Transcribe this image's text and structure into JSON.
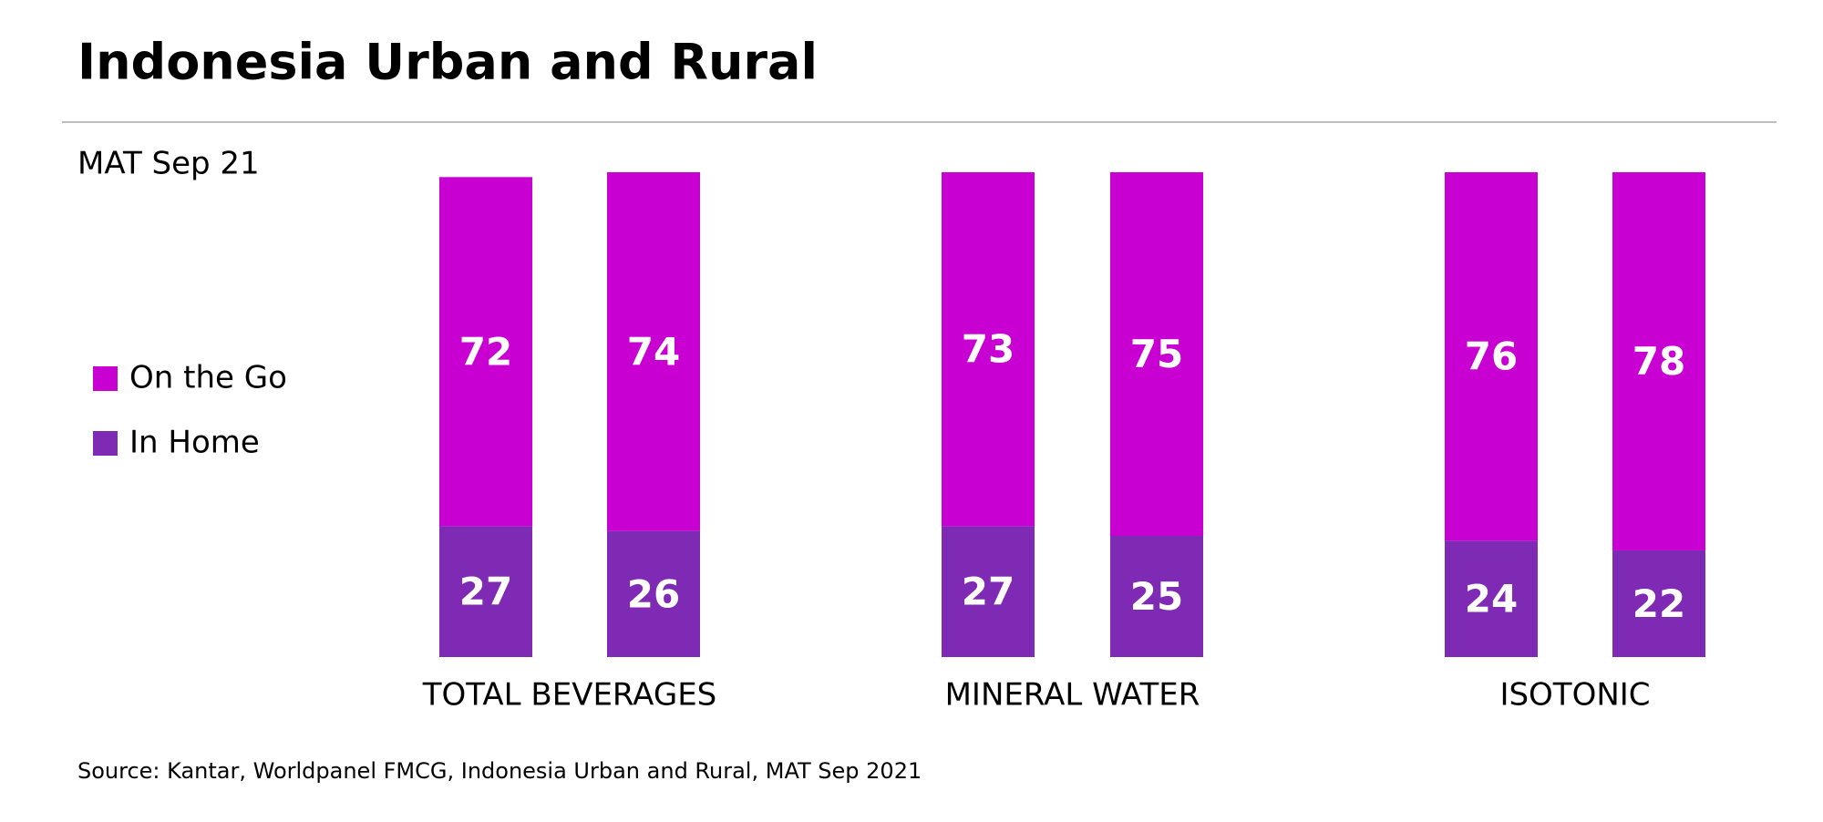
{
  "chart_data": {
    "type": "bar",
    "title": "Indonesia Urban and Rural",
    "subtitle": "MAT Sep 21",
    "source": "Source: Kantar, Worldpanel FMCG, Indonesia Urban and Rural, MAT Sep 2021",
    "categories": [
      "TOTAL BEVERAGES",
      "MINERAL WATER",
      "ISOTONIC"
    ],
    "stacked": true,
    "series": [
      {
        "name": "In Home",
        "color": "#7f2ab5",
        "values": [
          [
            27,
            26
          ],
          [
            27,
            25
          ],
          [
            24,
            22
          ]
        ]
      },
      {
        "name": "On the Go",
        "color": "#c800d2",
        "values": [
          [
            72,
            74
          ],
          [
            73,
            75
          ],
          [
            76,
            78
          ]
        ]
      }
    ],
    "legend_order": [
      1,
      0
    ],
    "ylim": [
      0,
      100
    ]
  }
}
